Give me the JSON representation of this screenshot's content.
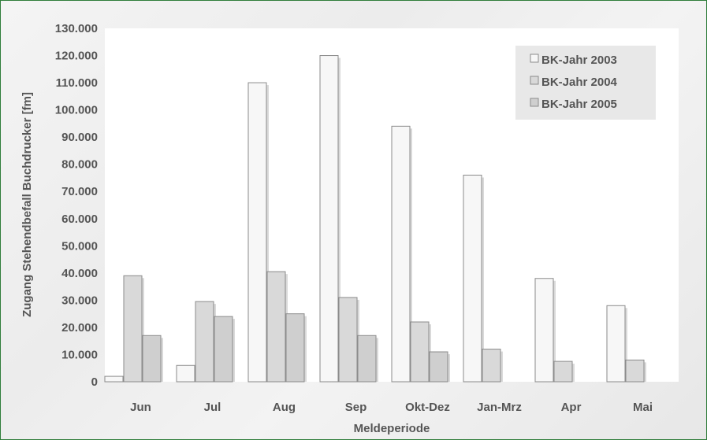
{
  "chart_data": {
    "type": "bar",
    "xlabel": "Meldeperiode",
    "ylabel": "Zugang Stehendbefall Buchdrucker [fm]",
    "categories": [
      "Jun",
      "Jul",
      "Aug",
      "Sep",
      "Okt-Dez",
      "Jan-Mrz",
      "Apr",
      "Mai"
    ],
    "series": [
      {
        "name": "BK-Jahr 2003",
        "color": "#f7f7f7",
        "values": [
          2000,
          6000,
          110000,
          120000,
          94000,
          76000,
          38000,
          28000
        ]
      },
      {
        "name": "BK-Jahr 2004",
        "color": "#d9d9d9",
        "values": [
          39000,
          29500,
          40500,
          31000,
          22000,
          12000,
          7500,
          8000
        ]
      },
      {
        "name": "BK-Jahr 2005",
        "color": "#cfcfcf",
        "values": [
          17000,
          24000,
          25000,
          17000,
          11000,
          null,
          null,
          null
        ]
      }
    ],
    "ylim": [
      0,
      130000
    ],
    "yticks": [
      "0",
      "10.000",
      "20.000",
      "30.000",
      "40.000",
      "50.000",
      "60.000",
      "70.000",
      "80.000",
      "90.000",
      "100.000",
      "110.000",
      "120.000",
      "130.000"
    ],
    "grid": false,
    "legend_position": "top-right"
  }
}
